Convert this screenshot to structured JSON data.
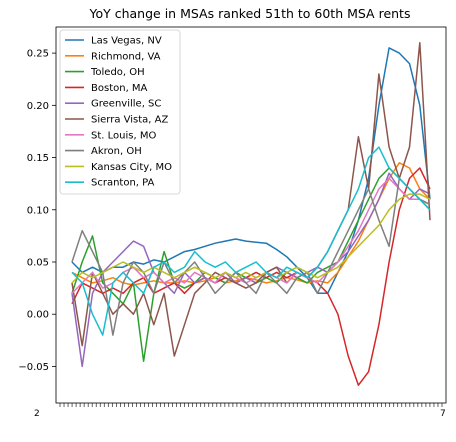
{
  "chart_data": {
    "type": "line",
    "title": "YoY change in MSAs ranked 51th to 60th MSA rents",
    "xlabel": "",
    "ylabel": "",
    "ylim": [
      -0.085,
      0.275
    ],
    "yticks": [
      "−0.05",
      "0.00",
      "0.05",
      "0.10",
      "0.15",
      "0.20",
      "0.25"
    ],
    "x_tick_text_left": "2",
    "x_tick_text_right": "7",
    "grid": false,
    "legend_position": "upper-left",
    "series": [
      {
        "name": "Las Vegas, NV",
        "color": "#1f77b4",
        "values": [
          0.05,
          0.04,
          0.045,
          0.04,
          0.045,
          0.045,
          0.05,
          0.048,
          0.052,
          0.05,
          0.055,
          0.06,
          0.062,
          0.065,
          0.068,
          0.07,
          0.072,
          0.07,
          0.069,
          0.068,
          0.062,
          0.055,
          0.045,
          0.035,
          0.02,
          0.02,
          0.04,
          0.06,
          0.09,
          0.13,
          0.2,
          0.255,
          0.25,
          0.24,
          0.2,
          0.11
        ]
      },
      {
        "name": "Richmond, VA",
        "color": "#ff7f0e",
        "values": [
          0.04,
          0.035,
          0.03,
          0.032,
          0.035,
          0.03,
          0.028,
          0.03,
          0.032,
          0.03,
          0.03,
          0.032,
          0.03,
          0.032,
          0.035,
          0.03,
          0.032,
          0.035,
          0.033,
          0.03,
          0.032,
          0.035,
          0.033,
          0.03,
          0.032,
          0.03,
          0.04,
          0.055,
          0.07,
          0.09,
          0.11,
          0.13,
          0.145,
          0.14,
          0.12,
          0.11
        ]
      },
      {
        "name": "Toledo, OH",
        "color": "#2ca02c",
        "values": [
          0.02,
          0.05,
          0.075,
          0.03,
          0.02,
          0.01,
          0.03,
          -0.045,
          0.02,
          0.06,
          0.03,
          0.025,
          0.03,
          0.04,
          0.035,
          0.03,
          0.04,
          0.035,
          0.03,
          0.035,
          0.03,
          0.04,
          0.035,
          0.03,
          0.04,
          0.045,
          0.05,
          0.07,
          0.09,
          0.11,
          0.13,
          0.14,
          0.13,
          0.12,
          0.11,
          0.1
        ]
      },
      {
        "name": "Boston, MA",
        "color": "#d62728",
        "values": [
          0.01,
          0.03,
          0.025,
          0.02,
          0.025,
          0.02,
          0.03,
          0.035,
          0.02,
          0.025,
          0.03,
          0.02,
          0.03,
          0.035,
          0.03,
          0.035,
          0.03,
          0.035,
          0.04,
          0.035,
          0.04,
          0.035,
          0.04,
          0.035,
          0.03,
          0.02,
          0.0,
          -0.04,
          -0.068,
          -0.055,
          -0.01,
          0.05,
          0.1,
          0.13,
          0.14,
          0.12
        ]
      },
      {
        "name": "Greenville, SC",
        "color": "#9467bd",
        "values": [
          0.02,
          -0.05,
          0.02,
          0.04,
          0.05,
          0.06,
          0.07,
          0.065,
          0.04,
          0.03,
          0.02,
          0.04,
          0.03,
          0.035,
          0.03,
          0.04,
          0.03,
          0.035,
          0.03,
          0.04,
          0.045,
          0.04,
          0.035,
          0.04,
          0.045,
          0.04,
          0.05,
          0.06,
          0.075,
          0.09,
          0.11,
          0.135,
          0.12,
          0.11,
          0.12,
          0.115
        ]
      },
      {
        "name": "Sierra Vista, AZ",
        "color": "#8c564b",
        "values": [
          0.03,
          -0.03,
          0.04,
          0.02,
          0.0,
          0.01,
          0.0,
          0.02,
          -0.01,
          0.02,
          -0.04,
          -0.01,
          0.02,
          0.03,
          0.04,
          0.035,
          0.03,
          0.025,
          0.03,
          0.04,
          0.045,
          0.03,
          0.04,
          0.035,
          0.045,
          0.06,
          0.08,
          0.1,
          0.17,
          0.12,
          0.23,
          0.16,
          0.13,
          0.16,
          0.26,
          0.09
        ]
      },
      {
        "name": "St. Louis, MO",
        "color": "#e377c2",
        "values": [
          0.02,
          0.03,
          0.04,
          0.025,
          0.03,
          0.04,
          0.045,
          0.035,
          0.04,
          0.03,
          0.035,
          0.03,
          0.04,
          0.035,
          0.03,
          0.04,
          0.035,
          0.03,
          0.035,
          0.04,
          0.035,
          0.03,
          0.04,
          0.035,
          0.03,
          0.04,
          0.05,
          0.065,
          0.08,
          0.1,
          0.12,
          0.13,
          0.12,
          0.11,
          0.11,
          0.105
        ]
      },
      {
        "name": "Akron, OH",
        "color": "#7f7f7f",
        "values": [
          0.05,
          0.08,
          0.06,
          0.04,
          -0.02,
          0.03,
          0.05,
          0.04,
          0.02,
          0.05,
          0.03,
          0.04,
          0.05,
          0.035,
          0.02,
          0.03,
          0.04,
          0.03,
          0.02,
          0.04,
          0.03,
          0.02,
          0.035,
          0.04,
          0.02,
          0.04,
          0.06,
          0.08,
          0.1,
          0.12,
          0.09,
          0.065,
          0.13,
          0.12,
          0.11,
          0.105
        ]
      },
      {
        "name": "Kansas City, MO",
        "color": "#bcbd22",
        "values": [
          0.03,
          0.04,
          0.035,
          0.04,
          0.045,
          0.05,
          0.045,
          0.04,
          0.045,
          0.04,
          0.035,
          0.04,
          0.045,
          0.04,
          0.035,
          0.04,
          0.035,
          0.04,
          0.035,
          0.04,
          0.035,
          0.04,
          0.045,
          0.04,
          0.035,
          0.04,
          0.045,
          0.055,
          0.065,
          0.075,
          0.085,
          0.1,
          0.11,
          0.115,
          0.115,
          0.11
        ]
      },
      {
        "name": "Scranton, PA",
        "color": "#17becf",
        "values": [
          0.04,
          0.03,
          0.0,
          -0.02,
          0.03,
          0.04,
          0.03,
          0.02,
          0.045,
          0.05,
          0.04,
          0.045,
          0.06,
          0.05,
          0.045,
          0.05,
          0.04,
          0.045,
          0.05,
          0.04,
          0.035,
          0.045,
          0.04,
          0.035,
          0.045,
          0.06,
          0.08,
          0.1,
          0.12,
          0.15,
          0.16,
          0.14,
          0.13,
          0.12,
          0.11,
          0.1
        ]
      }
    ]
  }
}
